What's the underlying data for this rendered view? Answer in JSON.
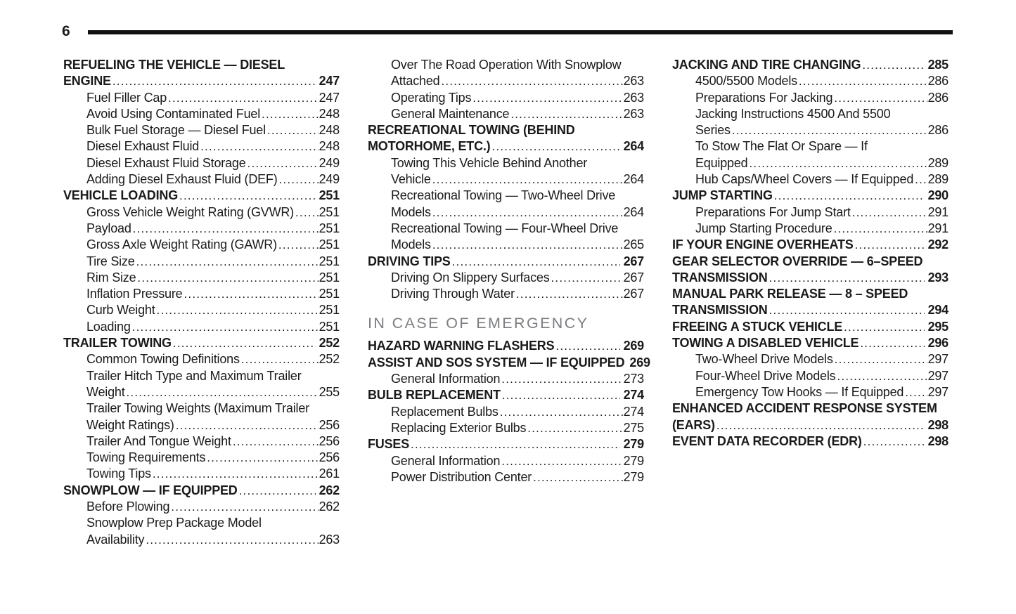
{
  "page": {
    "number": "6"
  },
  "columns": [
    {
      "entries": [
        {
          "style": "main",
          "lines": [
            "REFUELING THE VEHICLE — DIESEL",
            "ENGINE"
          ],
          "page": "247"
        },
        {
          "style": "sub",
          "lines": [
            "Fuel Filler Cap"
          ],
          "page": "247"
        },
        {
          "style": "sub",
          "lines": [
            "Avoid Using Contaminated Fuel"
          ],
          "page": "248"
        },
        {
          "style": "sub",
          "lines": [
            "Bulk Fuel Storage — Diesel Fuel"
          ],
          "page": "248"
        },
        {
          "style": "sub",
          "lines": [
            "Diesel Exhaust Fluid"
          ],
          "page": "248"
        },
        {
          "style": "sub",
          "lines": [
            "Diesel Exhaust Fluid Storage"
          ],
          "page": "249"
        },
        {
          "style": "sub",
          "lines": [
            "Adding Diesel Exhaust Fluid (DEF)"
          ],
          "page": "249"
        },
        {
          "style": "main",
          "lines": [
            "VEHICLE LOADING"
          ],
          "page": "251"
        },
        {
          "style": "sub",
          "lines": [
            "Gross Vehicle Weight Rating (GVWR)"
          ],
          "page": "251"
        },
        {
          "style": "sub",
          "lines": [
            "Payload"
          ],
          "page": "251"
        },
        {
          "style": "sub",
          "lines": [
            "Gross Axle Weight Rating (GAWR)"
          ],
          "page": "251"
        },
        {
          "style": "sub",
          "lines": [
            "Tire Size"
          ],
          "page": "251"
        },
        {
          "style": "sub",
          "lines": [
            "Rim Size"
          ],
          "page": "251"
        },
        {
          "style": "sub",
          "lines": [
            "Inflation Pressure"
          ],
          "page": "251"
        },
        {
          "style": "sub",
          "lines": [
            "Curb Weight"
          ],
          "page": "251"
        },
        {
          "style": "sub",
          "lines": [
            "Loading"
          ],
          "page": "251"
        },
        {
          "style": "main",
          "lines": [
            "TRAILER TOWING"
          ],
          "page": "252"
        },
        {
          "style": "sub",
          "lines": [
            "Common Towing Definitions"
          ],
          "page": "252"
        },
        {
          "style": "sub",
          "lines": [
            "Trailer Hitch Type and Maximum Trailer",
            "Weight"
          ],
          "page": "255"
        },
        {
          "style": "sub",
          "lines": [
            "Trailer Towing Weights (Maximum Trailer",
            "Weight Ratings)"
          ],
          "page": "256"
        },
        {
          "style": "sub",
          "lines": [
            "Trailer And Tongue Weight"
          ],
          "page": "256"
        },
        {
          "style": "sub",
          "lines": [
            "Towing Requirements"
          ],
          "page": "256"
        },
        {
          "style": "sub",
          "lines": [
            "Towing Tips"
          ],
          "page": "261"
        },
        {
          "style": "main",
          "lines": [
            "SNOWPLOW — IF EQUIPPED"
          ],
          "page": "262"
        },
        {
          "style": "sub",
          "lines": [
            "Before Plowing"
          ],
          "page": "262"
        },
        {
          "style": "sub",
          "lines": [
            "Snowplow Prep Package Model",
            "Availability"
          ],
          "page": "263"
        }
      ]
    },
    {
      "entries": [
        {
          "style": "sub",
          "lines": [
            "Over The Road Operation With Snowplow",
            "Attached"
          ],
          "page": "263"
        },
        {
          "style": "sub",
          "lines": [
            "Operating Tips"
          ],
          "page": "263"
        },
        {
          "style": "sub",
          "lines": [
            "General Maintenance"
          ],
          "page": "263"
        },
        {
          "style": "main",
          "lines": [
            "RECREATIONAL TOWING (BEHIND",
            "MOTORHOME, ETC.)"
          ],
          "page": "264"
        },
        {
          "style": "sub",
          "lines": [
            "Towing This Vehicle Behind Another",
            "Vehicle"
          ],
          "page": "264"
        },
        {
          "style": "sub",
          "lines": [
            "Recreational Towing — Two-Wheel Drive",
            "Models"
          ],
          "page": "264"
        },
        {
          "style": "sub",
          "lines": [
            "Recreational Towing — Four-Wheel Drive",
            "Models"
          ],
          "page": "265"
        },
        {
          "style": "main",
          "lines": [
            "DRIVING TIPS"
          ],
          "page": "267"
        },
        {
          "style": "sub",
          "lines": [
            "Driving On Slippery Surfaces"
          ],
          "page": "267"
        },
        {
          "style": "sub",
          "lines": [
            "Driving Through Water"
          ],
          "page": "267"
        },
        {
          "style": "header",
          "lines": [
            "IN CASE OF EMERGENCY"
          ]
        },
        {
          "style": "main",
          "lines": [
            "HAZARD WARNING FLASHERS"
          ],
          "page": "269"
        },
        {
          "style": "main",
          "lines": [
            "ASSIST AND SOS SYSTEM — IF EQUIPPED"
          ],
          "page": "269"
        },
        {
          "style": "sub",
          "lines": [
            "General Information"
          ],
          "page": "273"
        },
        {
          "style": "main",
          "lines": [
            "BULB REPLACEMENT"
          ],
          "page": "274"
        },
        {
          "style": "sub",
          "lines": [
            "Replacement Bulbs"
          ],
          "page": "274"
        },
        {
          "style": "sub",
          "lines": [
            "Replacing Exterior Bulbs"
          ],
          "page": "275"
        },
        {
          "style": "main",
          "lines": [
            "FUSES"
          ],
          "page": "279"
        },
        {
          "style": "sub",
          "lines": [
            "General Information"
          ],
          "page": "279"
        },
        {
          "style": "sub",
          "lines": [
            "Power Distribution Center"
          ],
          "page": "279"
        }
      ]
    },
    {
      "entries": [
        {
          "style": "main",
          "lines": [
            "JACKING AND TIRE CHANGING"
          ],
          "page": "285"
        },
        {
          "style": "sub",
          "lines": [
            "4500/5500 Models"
          ],
          "page": "286"
        },
        {
          "style": "sub",
          "lines": [
            "Preparations For Jacking"
          ],
          "page": "286"
        },
        {
          "style": "sub",
          "lines": [
            "Jacking Instructions 4500 And 5500",
            "Series"
          ],
          "page": "286"
        },
        {
          "style": "sub",
          "lines": [
            "To Stow The Flat Or Spare — If",
            "Equipped"
          ],
          "page": "289"
        },
        {
          "style": "sub",
          "lines": [
            "Hub Caps/Wheel Covers — If Equipped"
          ],
          "page": "289"
        },
        {
          "style": "main",
          "lines": [
            "JUMP STARTING"
          ],
          "page": "290"
        },
        {
          "style": "sub",
          "lines": [
            "Preparations For Jump Start"
          ],
          "page": "291"
        },
        {
          "style": "sub",
          "lines": [
            "Jump Starting Procedure"
          ],
          "page": "291"
        },
        {
          "style": "main",
          "lines": [
            "IF YOUR ENGINE OVERHEATS"
          ],
          "page": "292"
        },
        {
          "style": "main",
          "lines": [
            "GEAR SELECTOR OVERRIDE — 6–SPEED",
            "TRANSMISSION"
          ],
          "page": "293"
        },
        {
          "style": "main",
          "lines": [
            "MANUAL PARK RELEASE — 8 – SPEED",
            "TRANSMISSION"
          ],
          "page": "294"
        },
        {
          "style": "main",
          "lines": [
            "FREEING A STUCK VEHICLE"
          ],
          "page": "295"
        },
        {
          "style": "main",
          "lines": [
            "TOWING A DISABLED VEHICLE"
          ],
          "page": "296"
        },
        {
          "style": "sub",
          "lines": [
            "Two-Wheel Drive Models"
          ],
          "page": "297"
        },
        {
          "style": "sub",
          "lines": [
            "Four-Wheel Drive Models"
          ],
          "page": "297"
        },
        {
          "style": "sub",
          "lines": [
            "Emergency Tow Hooks — If Equipped"
          ],
          "page": "297"
        },
        {
          "style": "main",
          "lines": [
            "ENHANCED ACCIDENT RESPONSE SYSTEM",
            "(EARS)"
          ],
          "page": "298"
        },
        {
          "style": "main",
          "lines": [
            "EVENT DATA RECORDER (EDR)"
          ],
          "page": "298"
        }
      ]
    }
  ]
}
